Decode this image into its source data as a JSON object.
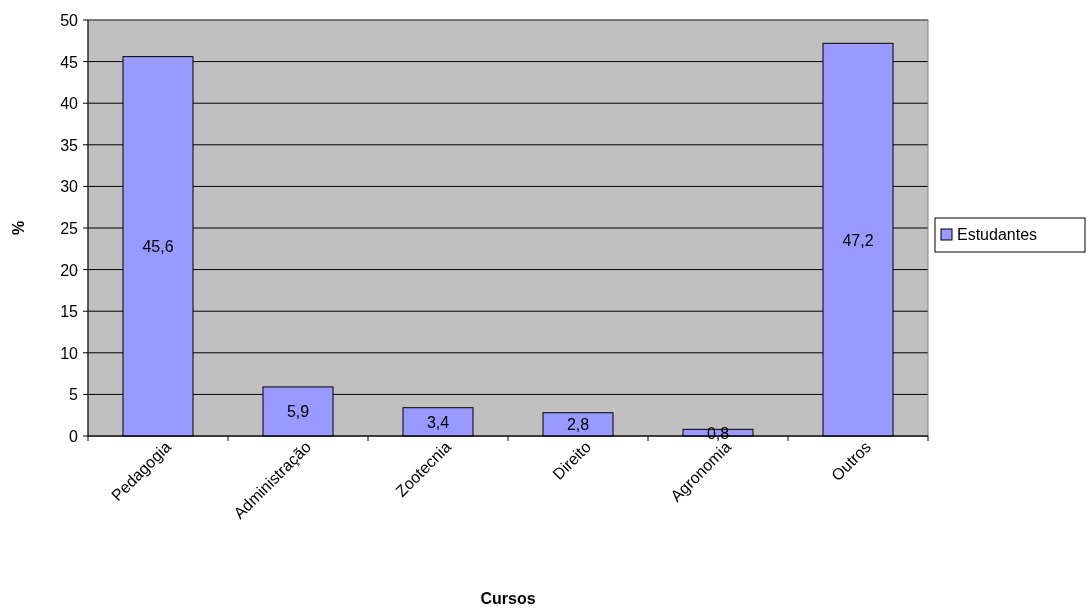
{
  "chart_data": {
    "type": "bar",
    "xlabel": "Cursos",
    "ylabel": "%",
    "categories": [
      "Pedagogia",
      "Administração",
      "Zootecnia",
      "Direito",
      "Agronomia",
      "Outros"
    ],
    "series": [
      {
        "name": "Estudantes",
        "color": "#9999ff",
        "values": [
          45.6,
          5.9,
          3.4,
          2.8,
          0.8,
          47.2
        ],
        "value_labels": [
          "45,6",
          "5,9",
          "3,4",
          "2,8",
          "0,8",
          "47,2"
        ]
      }
    ],
    "ylim": [
      0,
      50
    ],
    "yticks": [
      0,
      5,
      10,
      15,
      20,
      25,
      30,
      35,
      40,
      45,
      50
    ],
    "grid": "y",
    "legend": "right"
  }
}
